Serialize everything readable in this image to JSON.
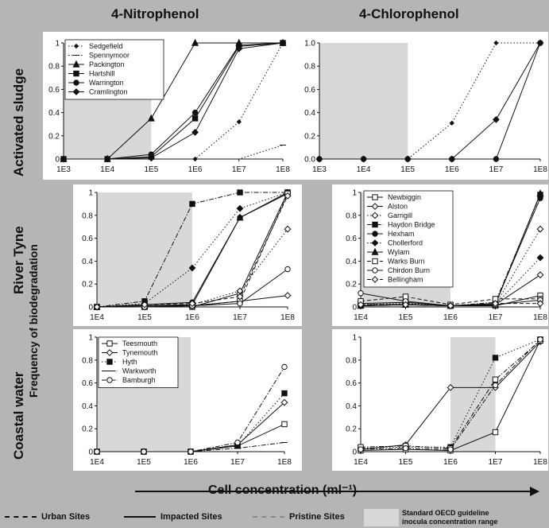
{
  "titles": {
    "col1": "4-Nitrophenol",
    "col2": "4-Chlorophenol",
    "row1": "Activated sludge",
    "row2": "River Tyne",
    "row3": "Coastal water",
    "ylabel": "Frequency of biodegradation",
    "xlabel": "Cell concentration (ml⁻¹)"
  },
  "bottom_legend": {
    "urban": "Urban Sites",
    "impacted": "Impacted Sites",
    "pristine": "Pristine Sites",
    "oecd_line1": "Standard OECD guideline",
    "oecd_line2": "inocula concentration range"
  },
  "colors": {
    "panel_bg": "#ffffff",
    "shade": "#d8d8d8",
    "page_bg": "#b5b5b5",
    "ink": "#111111"
  },
  "chart_data": [
    {
      "type": "line",
      "id": "as-np",
      "x": [
        "1E3",
        "1E4",
        "1E5",
        "1E6",
        "1E7",
        "1E8"
      ],
      "ylim": [
        0,
        1
      ],
      "yticks": [
        "0",
        "0.2",
        "0.4",
        "0.6",
        "0.8",
        "1"
      ],
      "shade": [
        "1E3",
        "1E5"
      ],
      "series": [
        {
          "name": "Sedgefield",
          "values": [
            0,
            0,
            0,
            0,
            0.32,
            1
          ],
          "style": "dot",
          "marker": "diamond-small"
        },
        {
          "name": "Spennymoor",
          "values": [
            0,
            0,
            0,
            0,
            0,
            0.12
          ],
          "style": "dot",
          "marker": "line"
        },
        {
          "name": "Packington",
          "values": [
            0,
            0,
            0.35,
            1,
            1,
            1
          ],
          "style": "solid",
          "marker": "triangle"
        },
        {
          "name": "Hartshill",
          "values": [
            0,
            0,
            0.02,
            0.35,
            0.97,
            1
          ],
          "style": "solid",
          "marker": "square"
        },
        {
          "name": "Warrington",
          "values": [
            0,
            0,
            0.04,
            0.4,
            0.98,
            1
          ],
          "style": "solid",
          "marker": "circle"
        },
        {
          "name": "Cramlington",
          "values": [
            0,
            0,
            0.01,
            0.23,
            0.95,
            1
          ],
          "style": "solid",
          "marker": "diamond"
        }
      ]
    },
    {
      "type": "line",
      "id": "as-cp",
      "x": [
        "1E3",
        "1E4",
        "1E5",
        "1E6",
        "1E7",
        "1E8"
      ],
      "ylim": [
        0,
        1
      ],
      "yticks": [
        "0.0",
        "0.2",
        "0.4",
        "0.6",
        "0.8",
        "1.0"
      ],
      "shade": [
        "1E3",
        "1E5"
      ],
      "series": [
        {
          "name": "Sedgefield",
          "values": [
            0,
            0,
            0,
            0.31,
            1,
            1
          ],
          "style": "dot",
          "marker": "diamond-small"
        },
        {
          "name": "Spennymoor",
          "values": [
            0,
            0,
            0,
            0,
            0.34,
            1
          ],
          "style": "solid",
          "marker": "diamond"
        },
        {
          "name": "Hartshill",
          "values": [
            0,
            0,
            0,
            0,
            0,
            1
          ],
          "style": "solid",
          "marker": "circle"
        }
      ]
    },
    {
      "type": "line",
      "id": "rt-np",
      "x": [
        "1E4",
        "1E5",
        "1E6",
        "1E7",
        "1E8"
      ],
      "ylim": [
        0,
        1
      ],
      "yticks": [
        "0",
        "0.2",
        "0.4",
        "0.6",
        "0.8",
        "1"
      ],
      "shade": [
        "1E4",
        "1E6"
      ],
      "series": [
        {
          "name": "Newbiggin",
          "values": [
            0,
            0,
            0,
            0.12,
            1
          ],
          "style": "solid",
          "marker": "square-open"
        },
        {
          "name": "Alston",
          "values": [
            0,
            0.01,
            0.01,
            0.05,
            0.1
          ],
          "style": "solid",
          "marker": "diamond-open"
        },
        {
          "name": "Garrigill",
          "values": [
            0,
            0,
            0.02,
            0.14,
            0.68
          ],
          "style": "dot",
          "marker": "diamond-open"
        },
        {
          "name": "Haydon Bridge",
          "values": [
            0,
            0.05,
            0.9,
            1,
            1
          ],
          "style": "dashdot",
          "marker": "square"
        },
        {
          "name": "Hexham",
          "values": [
            0,
            0.02,
            0.04,
            0.78,
            1
          ],
          "style": "solid",
          "marker": "circle"
        },
        {
          "name": "Chollerford",
          "values": [
            0,
            0.03,
            0.34,
            0.86,
            1
          ],
          "style": "dot",
          "marker": "diamond"
        },
        {
          "name": "Wylam",
          "values": [
            0,
            0.01,
            0.02,
            0.78,
            0.99
          ],
          "style": "solid",
          "marker": "triangle"
        },
        {
          "name": "Warks Burn",
          "values": [
            0,
            0,
            0.01,
            0.05,
            0.99
          ],
          "style": "dash",
          "marker": "square-open"
        },
        {
          "name": "Chirdon Burn",
          "values": [
            0,
            0,
            0.01,
            0.03,
            0.33
          ],
          "style": "solid",
          "marker": "circle-open"
        },
        {
          "name": "Bellingham",
          "values": [
            0,
            0.02,
            0.03,
            0.09,
            0.97
          ],
          "style": "dash",
          "marker": "diamond-open"
        }
      ]
    },
    {
      "type": "line",
      "id": "rt-cp",
      "x": [
        "1E4",
        "1E5",
        "1E6",
        "1E7",
        "1E8"
      ],
      "ylim": [
        0,
        1
      ],
      "yticks": [
        "0",
        "0.2",
        "0.4",
        "0.6",
        "0.8",
        "1"
      ],
      "shade": [
        "1E4",
        "1E6"
      ],
      "series": [
        {
          "name": "Newbiggin",
          "values": [
            0.03,
            0.04,
            0.01,
            0.01,
            0.1
          ],
          "style": "solid",
          "marker": "square-open"
        },
        {
          "name": "Alston",
          "values": [
            0.01,
            0.02,
            0.01,
            0.02,
            0.28
          ],
          "style": "solid",
          "marker": "diamond-open"
        },
        {
          "name": "Garrigill",
          "values": [
            0.02,
            0.03,
            0.01,
            0.02,
            0.68
          ],
          "style": "dot",
          "marker": "diamond-open"
        },
        {
          "name": "Haydon Bridge",
          "values": [
            0.02,
            0.02,
            0.01,
            0.04,
            0.98
          ],
          "style": "dashdot",
          "marker": "square"
        },
        {
          "name": "Hexham",
          "values": [
            0.01,
            0.02,
            0.01,
            0.03,
            0.95
          ],
          "style": "solid",
          "marker": "circle"
        },
        {
          "name": "Chollerford",
          "values": [
            0.02,
            0.03,
            0.01,
            0.02,
            0.43
          ],
          "style": "dot",
          "marker": "diamond"
        },
        {
          "name": "Wylam",
          "values": [
            0.01,
            0.02,
            0.01,
            0.02,
            0.99
          ],
          "style": "solid",
          "marker": "triangle"
        },
        {
          "name": "Warks Burn",
          "values": [
            0.05,
            0.09,
            0.02,
            0.07,
            0.07
          ],
          "style": "dash",
          "marker": "square-open"
        },
        {
          "name": "Chirdon Burn",
          "values": [
            0.12,
            0.05,
            0.01,
            0.02,
            0.06
          ],
          "style": "solid",
          "marker": "circle-open"
        },
        {
          "name": "Bellingham",
          "values": [
            0.02,
            0.02,
            0.01,
            0.03,
            0.03
          ],
          "style": "dash",
          "marker": "diamond-open"
        }
      ]
    },
    {
      "type": "line",
      "id": "cw-np",
      "x": [
        "1E4",
        "1E5",
        "1E6",
        "1E7",
        "1E8"
      ],
      "ylim": [
        0,
        1
      ],
      "yticks": [
        "0",
        "0.2",
        "0.4",
        "0.6",
        "0.8",
        "1"
      ],
      "shade": [
        "1E4",
        "1E6"
      ],
      "series": [
        {
          "name": "Teesmouth",
          "values": [
            0,
            0,
            0,
            0.05,
            0.24
          ],
          "style": "solid",
          "marker": "square-open"
        },
        {
          "name": "Tynemouth",
          "values": [
            0,
            0,
            0,
            0.06,
            0.43
          ],
          "style": "solid",
          "marker": "diamond-open"
        },
        {
          "name": "Hyth",
          "values": [
            0,
            0,
            0,
            0.05,
            0.51
          ],
          "style": "dot",
          "marker": "square"
        },
        {
          "name": "Warkworth",
          "values": [
            0,
            0,
            0,
            0.03,
            0.08
          ],
          "style": "dashdot",
          "marker": "line"
        },
        {
          "name": "Bamburgh",
          "values": [
            0,
            0,
            0,
            0.08,
            0.74
          ],
          "style": "dashdot",
          "marker": "circle-open"
        }
      ]
    },
    {
      "type": "line",
      "id": "cw-cp",
      "x": [
        "1E4",
        "1E5",
        "1E6",
        "1E7",
        "1E8"
      ],
      "ylim": [
        0,
        1
      ],
      "yticks": [
        "0",
        "0.2",
        "0.4",
        "0.6",
        "0.8",
        "1"
      ],
      "shade": [
        "1E6",
        "1E7"
      ],
      "series": [
        {
          "name": "Teesmouth",
          "values": [
            0.01,
            0.02,
            0.01,
            0.17,
            0.97
          ],
          "style": "solid",
          "marker": "square-open"
        },
        {
          "name": "Tynemouth",
          "values": [
            0.02,
            0.06,
            0.56,
            0.56,
            0.96
          ],
          "style": "solid",
          "marker": "diamond-open"
        },
        {
          "name": "Hyth",
          "values": [
            0.03,
            0.04,
            0.04,
            0.82,
            0.98
          ],
          "style": "dot",
          "marker": "square"
        },
        {
          "name": "Warkworth",
          "values": [
            0.04,
            0.05,
            0.03,
            0.63,
            0.97
          ],
          "style": "dashdot",
          "marker": "square-open"
        },
        {
          "name": "Bamburgh",
          "values": [
            0.02,
            0.03,
            0.02,
            0.58,
            0.98
          ],
          "style": "dashdot",
          "marker": "circle-open"
        }
      ]
    }
  ]
}
